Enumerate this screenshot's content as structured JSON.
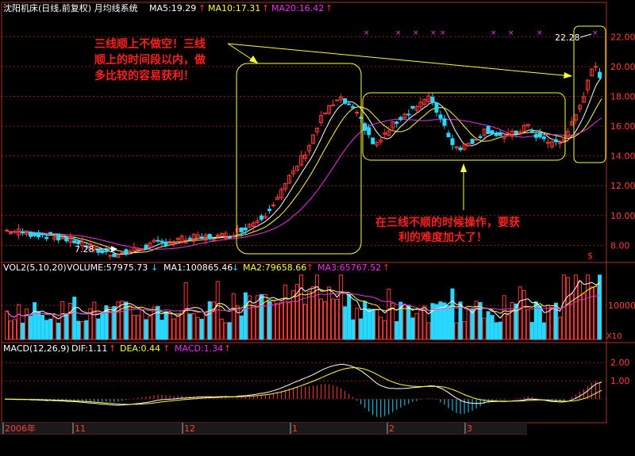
{
  "colors": {
    "background": "#000000",
    "frame": "#b0302a",
    "grid": "#8a1e1e",
    "up": "#ff3a3a",
    "down": "#28d8ff",
    "ma5": "#ffffff",
    "ma10": "#ffff33",
    "ma20": "#ee33ee",
    "annotation": "#ffff33",
    "annotation_text": "#ff2020",
    "axis_text": "#ff4040"
  },
  "header": {
    "stock": "沈阳机床(日线,前复权) 月均线系统",
    "ma5": "MA5:19.29",
    "ma10": "MA10:17.31",
    "ma20": "MA20:16.42",
    "arrow_up": "↑"
  },
  "volume_header": {
    "name": "VOL2(5,10,20)",
    "volume": "VOLUME:57975.73",
    "ma1": "MA1:100865.46",
    "ma2": "MA2:79658.66",
    "ma3": "MA3:65767.52",
    "arrow_down": "↓",
    "arrow_up": "↑"
  },
  "macd_header": {
    "name": "MACD(12,26,9)",
    "dif": "DIF:1.11",
    "dea": "DEA:0.44",
    "macd": "MACD:1.34",
    "arrow_up": "↑"
  },
  "annotations": {
    "top_left_line1": "三线顺上不做空！三线",
    "top_left_line2": "顺上的时间段以内，做",
    "top_left_line3": "多比较的容易获利！",
    "bottom_line1": "在三线不顺的时候操作，要获",
    "bottom_line2": "利的难度加大了！",
    "low_label": "7.28",
    "high_label": "22.28",
    "dollar": "$",
    "x10": "X10"
  },
  "chart_data": {
    "type": "candlestick",
    "price_axis": {
      "ylim": [
        6.9,
        23.3
      ],
      "ticks": [
        "22.00",
        "20.00",
        "18.00",
        "16.00",
        "14.00",
        "12.00",
        "10.00",
        "8.00"
      ]
    },
    "volume_axis": {
      "ticks": [
        "10000"
      ]
    },
    "macd_axis": {
      "ylim": [
        -1.25,
        2.4
      ],
      "ticks": [
        "2.00",
        "1.00"
      ]
    },
    "x_labels": [
      "2006年",
      "11",
      "12",
      "1",
      "2",
      "3"
    ],
    "key_points": {
      "low": 7.28,
      "high": 22.28
    }
  }
}
